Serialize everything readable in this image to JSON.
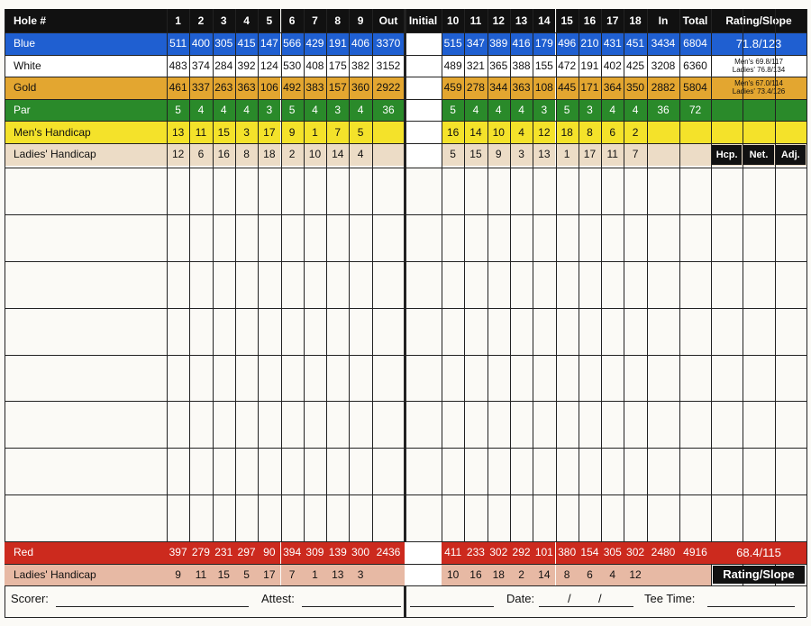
{
  "header": {
    "hole_label": "Hole #",
    "front_holes": [
      "1",
      "2",
      "3",
      "4",
      "5",
      "6",
      "7",
      "8",
      "9"
    ],
    "out_label": "Out",
    "initial_label": "Initial",
    "back_holes": [
      "10",
      "11",
      "12",
      "13",
      "14",
      "15",
      "16",
      "17",
      "18"
    ],
    "in_label": "In",
    "total_label": "Total",
    "rating_label": "Rating/Slope"
  },
  "rows": [
    {
      "label": "Blue",
      "bg": "#1f5fd1",
      "fg": "#ffffff",
      "front": [
        "511",
        "400",
        "305",
        "415",
        "147",
        "566",
        "429",
        "191",
        "406"
      ],
      "out": "3370",
      "back": [
        "515",
        "347",
        "389",
        "416",
        "179",
        "496",
        "210",
        "431",
        "451"
      ],
      "in": "3434",
      "total": "6804",
      "rating": [
        "71.8/123"
      ]
    },
    {
      "label": "White",
      "bg": "#ffffff",
      "fg": "#111111",
      "front": [
        "483",
        "374",
        "284",
        "392",
        "124",
        "530",
        "408",
        "175",
        "382"
      ],
      "out": "3152",
      "back": [
        "489",
        "321",
        "365",
        "388",
        "155",
        "472",
        "191",
        "402",
        "425"
      ],
      "in": "3208",
      "total": "6360",
      "rating": [
        "Men's 69.8/117",
        "Ladies' 76.8/134"
      ]
    },
    {
      "label": "Gold",
      "bg": "#e3a630",
      "fg": "#111111",
      "front": [
        "461",
        "337",
        "263",
        "363",
        "106",
        "492",
        "383",
        "157",
        "360"
      ],
      "out": "2922",
      "back": [
        "459",
        "278",
        "344",
        "363",
        "108",
        "445",
        "171",
        "364",
        "350"
      ],
      "in": "2882",
      "total": "5804",
      "rating": [
        "Men's 67.0/114",
        "Ladies' 73.4/126"
      ]
    },
    {
      "label": "Par",
      "bg": "#2a8a2a",
      "fg": "#ffffff",
      "front": [
        "5",
        "4",
        "4",
        "4",
        "3",
        "5",
        "4",
        "3",
        "4"
      ],
      "out": "36",
      "back": [
        "5",
        "4",
        "4",
        "4",
        "3",
        "5",
        "3",
        "4",
        "4"
      ],
      "in": "36",
      "total": "72",
      "rating": []
    },
    {
      "label": "Men's Handicap",
      "bg": "#f4e22a",
      "fg": "#111111",
      "front": [
        "13",
        "11",
        "15",
        "3",
        "17",
        "9",
        "1",
        "7",
        "5"
      ],
      "out": "",
      "back": [
        "16",
        "14",
        "10",
        "4",
        "12",
        "18",
        "8",
        "6",
        "2"
      ],
      "in": "",
      "total": "",
      "rating": []
    },
    {
      "label": "Ladies' Handicap",
      "bg": "#ecdcc6",
      "fg": "#111111",
      "front": [
        "12",
        "6",
        "16",
        "8",
        "18",
        "2",
        "10",
        "14",
        "4"
      ],
      "out": "",
      "back": [
        "5",
        "15",
        "9",
        "3",
        "13",
        "1",
        "17",
        "11",
        "7"
      ],
      "in": "",
      "total": "",
      "rating": []
    }
  ],
  "hcp_headers": [
    "Hcp.",
    "Net.",
    "Adj."
  ],
  "bottom_rows": [
    {
      "label": "Red",
      "bg": "#cc2a1e",
      "fg": "#ffffff",
      "front": [
        "397",
        "279",
        "231",
        "297",
        "90",
        "394",
        "309",
        "139",
        "300"
      ],
      "out": "2436",
      "back": [
        "411",
        "233",
        "302",
        "292",
        "101",
        "380",
        "154",
        "305",
        "302"
      ],
      "in": "2480",
      "total": "4916",
      "rating": "68.4/115"
    },
    {
      "label": "Ladies' Handicap",
      "bg": "#e7b9a4",
      "fg": "#111111",
      "front": [
        "9",
        "11",
        "15",
        "5",
        "17",
        "7",
        "1",
        "13",
        "3"
      ],
      "out": "",
      "back": [
        "10",
        "16",
        "18",
        "2",
        "14",
        "8",
        "6",
        "4",
        "12"
      ],
      "in": "",
      "total": "",
      "rating": "Rating/Slope"
    }
  ],
  "footer": {
    "scorer_label": "Scorer:",
    "attest_label": "Attest:",
    "date_label": "Date:",
    "date_sep": "/",
    "tee_time_label": "Tee Time:"
  },
  "colors": {
    "header_bg": "#111111",
    "header_fg": "#ffffff",
    "grid": "#222222"
  }
}
